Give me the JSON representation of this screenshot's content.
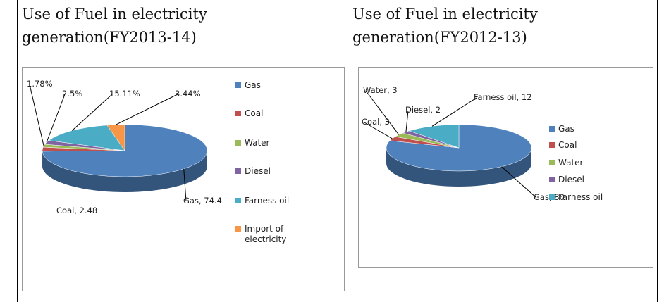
{
  "chart_data": [
    {
      "type": "pie",
      "title": "Use of Fuel in electricity generation(FY2013-14)",
      "categories": [
        "Gas",
        "Coal",
        "Water",
        "Diesel",
        "Farness oil",
        "Import of electricity"
      ],
      "values": [
        74.4,
        2.48,
        1.78,
        2.5,
        15.11,
        3.44
      ],
      "value_labels": [
        "Gas, 74.4",
        "Coal, 2.48",
        "1.78%",
        "2.5%",
        "15.11%",
        "3.44%"
      ],
      "colors": [
        "#4f81bd",
        "#c0504d",
        "#9bbb59",
        "#8064a2",
        "#4bacc6",
        "#f79646"
      ],
      "legend": "right"
    },
    {
      "type": "pie",
      "title": "Use of Fuel in electricity generation(FY2012-13)",
      "categories": [
        "Gas",
        "Coal",
        "Water",
        "Diesel",
        "Farness oil"
      ],
      "values": [
        80,
        3,
        3,
        2,
        12
      ],
      "value_labels": [
        "Gas, 80",
        "Coal, 3",
        "Water, 3",
        "Diesel, 2",
        "Farness oil, 12"
      ],
      "colors": [
        "#4f81bd",
        "#c0504d",
        "#9bbb59",
        "#8064a2",
        "#4bacc6"
      ],
      "legend": "right"
    }
  ]
}
